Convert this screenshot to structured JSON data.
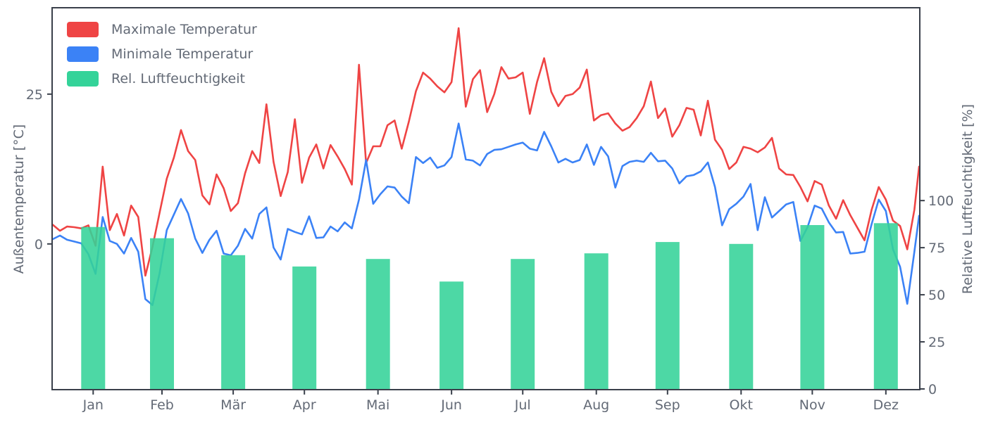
{
  "figure": {
    "background": "#ffffff"
  },
  "colors": {
    "max_temp_line": "#ef4444",
    "min_temp_line": "#3b82f6",
    "humidity_bar": "#34d399",
    "spine": "#3a404b",
    "text": "#636a76"
  },
  "chart_data": {
    "type": "mixed",
    "title": "",
    "x_axis": {
      "unit": "day-of-year",
      "range_days": [
        0,
        365
      ],
      "tick_labels": [
        "Jan",
        "Feb",
        "Mär",
        "Apr",
        "Mai",
        "Jun",
        "Jul",
        "Aug",
        "Sep",
        "Okt",
        "Nov",
        "Dez"
      ],
      "tick_days": [
        17,
        46,
        76,
        106,
        137,
        168,
        198,
        229,
        259,
        290,
        320,
        351
      ]
    },
    "left_axis": {
      "label": "Außentemperatur [°C]",
      "ticks": [
        0,
        25
      ],
      "range": [
        -24.2,
        39.3
      ]
    },
    "right_axis": {
      "label": "Relative Luftfeuchtigkeit [%]",
      "ticks": [
        0,
        25,
        50,
        75,
        100
      ],
      "range": [
        0,
        202
      ]
    },
    "legend": {
      "position": "upper left"
    },
    "series": [
      {
        "name": "Maximale Temperatur",
        "type": "line",
        "axis": "left",
        "color": "#ef4444",
        "sample_interval_days": 3,
        "values": [
          3.2,
          2.2,
          2.9,
          2.8,
          2.6,
          3.1,
          -0.3,
          12.9,
          2.3,
          5.0,
          1.4,
          6.4,
          4.5,
          -5.3,
          -0.5,
          5.2,
          10.9,
          14.4,
          19.0,
          15.5,
          14.0,
          8.1,
          6.6,
          11.6,
          9.3,
          5.5,
          6.8,
          11.8,
          15.5,
          13.5,
          23.3,
          13.7,
          8.0,
          12.0,
          20.8,
          10.2,
          14.4,
          16.6,
          12.6,
          16.5,
          14.6,
          12.5,
          9.9,
          29.9,
          13.5,
          16.3,
          16.3,
          19.8,
          20.6,
          15.9,
          20.4,
          25.5,
          28.6,
          27.6,
          26.3,
          25.3,
          27.0,
          36.0,
          22.9,
          27.5,
          29.0,
          22.0,
          25.0,
          29.5,
          27.6,
          27.8,
          28.6,
          21.7,
          27.0,
          31.0,
          25.4,
          23.0,
          24.7,
          25.0,
          26.1,
          29.1,
          20.6,
          21.5,
          21.8,
          20.1,
          18.9,
          19.5,
          21.0,
          23.0,
          27.1,
          21.0,
          22.6,
          17.9,
          19.8,
          22.7,
          22.4,
          18.1,
          23.9,
          17.4,
          15.7,
          12.5,
          13.6,
          16.2,
          15.9,
          15.3,
          16.1,
          17.7,
          12.6,
          11.6,
          11.5,
          9.5,
          7.1,
          10.5,
          9.9,
          6.4,
          4.2,
          7.3,
          4.8,
          2.7,
          0.6,
          5.7,
          9.5,
          7.4,
          3.9,
          3.0,
          -0.9,
          5.7,
          12.9
        ]
      },
      {
        "name": "Minimale Temperatur",
        "type": "line",
        "axis": "left",
        "color": "#3b82f6",
        "sample_interval_days": 3,
        "values": [
          0.8,
          1.4,
          0.7,
          0.4,
          0.1,
          -1.7,
          -5.0,
          4.5,
          0.5,
          0.0,
          -1.6,
          1.0,
          -1.3,
          -9.2,
          -10.2,
          -4.9,
          2.3,
          4.9,
          7.5,
          5.1,
          0.9,
          -1.5,
          0.7,
          2.2,
          -1.6,
          -1.9,
          -0.3,
          2.5,
          0.9,
          5.0,
          6.1,
          -0.6,
          -2.6,
          2.5,
          2.0,
          1.6,
          4.6,
          1.0,
          1.1,
          2.9,
          2.1,
          3.6,
          2.6,
          7.4,
          14.0,
          6.7,
          8.3,
          9.6,
          9.4,
          7.9,
          6.8,
          14.5,
          13.5,
          14.4,
          12.7,
          13.1,
          14.5,
          20.1,
          14.1,
          13.9,
          13.1,
          15.0,
          15.7,
          15.8,
          16.2,
          16.6,
          16.9,
          15.9,
          15.6,
          18.7,
          16.3,
          13.6,
          14.2,
          13.6,
          14.0,
          16.6,
          13.2,
          16.2,
          14.6,
          9.4,
          13.0,
          13.7,
          13.9,
          13.7,
          15.2,
          13.8,
          13.9,
          12.6,
          10.1,
          11.3,
          11.5,
          12.1,
          13.6,
          9.5,
          3.1,
          5.8,
          6.7,
          7.9,
          10.0,
          2.3,
          7.8,
          4.4,
          5.5,
          6.6,
          7.0,
          0.5,
          2.8,
          6.4,
          5.9,
          3.6,
          1.9,
          2.0,
          -1.6,
          -1.5,
          -1.3,
          3.3,
          7.4,
          5.5,
          -0.9,
          -3.8,
          -10.0,
          -1.3,
          4.7
        ]
      },
      {
        "name": "Rel. Luftfeuchtigkeit",
        "type": "bar",
        "axis": "right",
        "color": "#34d399",
        "categories": [
          "Jan",
          "Feb",
          "Mär",
          "Apr",
          "Mai",
          "Jun",
          "Jul",
          "Aug",
          "Sep",
          "Okt",
          "Nov",
          "Dez"
        ],
        "values": [
          86,
          80,
          71,
          65,
          69,
          57,
          69,
          72,
          78,
          77,
          87,
          88
        ]
      }
    ]
  }
}
